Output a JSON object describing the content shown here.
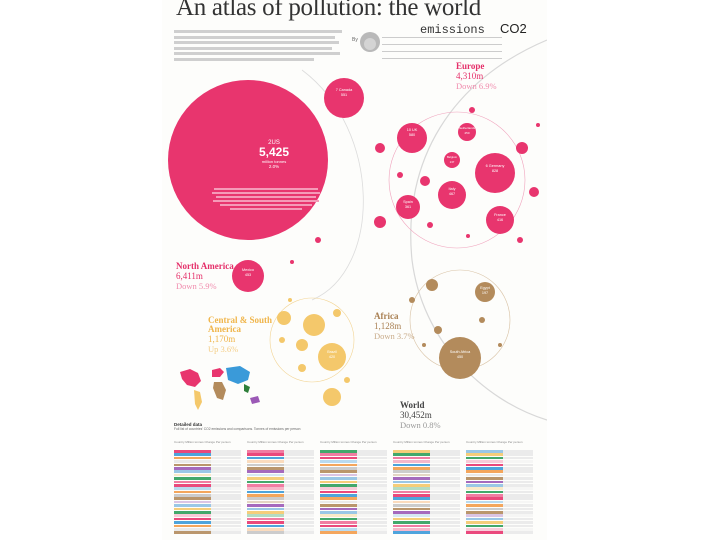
{
  "title": "An atlas of pollution: the world",
  "title_suffix": "emissions",
  "co2": "CO2",
  "by": "By",
  "colors": {
    "pink": "#e5306a",
    "pink_light": "#ef6f98",
    "gold": "#f2c66a",
    "brown": "#b28a5b",
    "divider": "#d8d8d8"
  },
  "us": {
    "name": "2US",
    "value": "5,425",
    "unit": "million tonnes",
    "change": "2.0%"
  },
  "regions": {
    "europe": {
      "name": "Europe",
      "value": "4,310m",
      "change": "Down 6.9%"
    },
    "north_america": {
      "name": "North America",
      "value": "6,411m",
      "change": "Down 5.9%"
    },
    "central_south_america": {
      "name": "Central & South America",
      "value": "1,170m",
      "change": "Up 3.6%"
    },
    "africa": {
      "name": "Africa",
      "value": "1,128m",
      "change": "Down 3.7%"
    },
    "world": {
      "name": "World",
      "value": "30,452m",
      "change": "Down 0.8%"
    }
  },
  "bubbles": {
    "canada": {
      "label": "7 Canada",
      "value": "551"
    },
    "mexico": {
      "label": "Mexico",
      "value": "453"
    },
    "uk": {
      "label": "10 UK",
      "value": "580"
    },
    "netherlands": {
      "label": "Netherlands",
      "value": "250"
    },
    "germany": {
      "label": "6 Germany",
      "value": "828"
    },
    "belgium": {
      "label": "Belgium",
      "value": "137"
    },
    "italy": {
      "label": "Italy",
      "value": "467"
    },
    "spain": {
      "label": "Spain",
      "value": "361"
    },
    "france": {
      "label": "France",
      "value": "416"
    },
    "brazil": {
      "label": "Brazil",
      "value": "420"
    },
    "south_africa": {
      "label": "South Africa",
      "value": "450"
    },
    "egypt": {
      "label": "Egypt",
      "value": "197"
    }
  },
  "detailed": {
    "title": "Detailed data",
    "text": "Full list of countries' CO2 emissions and comparisons. Tonnes of emissions per person"
  },
  "table": {
    "col_header": "Country  Million tonnes  Change  Per person"
  }
}
